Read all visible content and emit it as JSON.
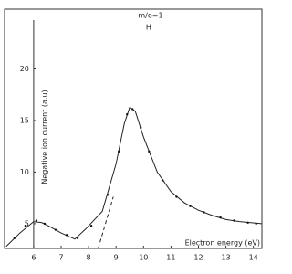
{
  "chart_data": {
    "type": "line",
    "y_label": "Negative ion current (a.u)",
    "x_label": "Electron energy (eV)",
    "annotations": [
      "m/e=1",
      "H⁻"
    ],
    "x": [
      5.0,
      5.5,
      6.0,
      6.3,
      6.6,
      7.0,
      7.5,
      7.9,
      8.5,
      9.0,
      9.3,
      9.5,
      9.7,
      10.0,
      10.5,
      11.0,
      11.5,
      12.0,
      12.5,
      13.0,
      13.5,
      14.3
    ],
    "series": [
      {
        "color": "#222",
        "values": [
          2.8,
          4.1,
          5.2,
          5.1,
          4.7,
          4.1,
          3.5,
          4.5,
          6.2,
          10.8,
          14.7,
          16.3,
          15.9,
          13.4,
          10.0,
          8.1,
          7.0,
          6.3,
          5.8,
          5.4,
          5.2,
          5.0
        ]
      }
    ],
    "points": {
      "x": [
        5.3,
        5.7,
        6.1,
        6.4,
        6.8,
        7.2,
        7.6,
        8.1,
        8.7,
        9.1,
        9.4,
        9.6,
        9.9,
        10.2,
        10.7,
        11.2,
        11.7,
        12.2,
        12.8,
        13.3,
        13.8,
        14.1
      ],
      "values": [
        3.6,
        4.8,
        5.3,
        5.0,
        4.4,
        3.9,
        3.6,
        4.8,
        7.8,
        12.0,
        15.6,
        16.1,
        14.3,
        12.0,
        9.2,
        7.6,
        6.7,
        6.1,
        5.6,
        5.3,
        5.1,
        5.0
      ]
    },
    "extrapolation": {
      "x": [
        8.35,
        8.9
      ],
      "values": [
        2.6,
        7.6
      ]
    },
    "xlim": [
      4.94,
      14.31
    ],
    "ylim": [
      2.6,
      25.8
    ],
    "xticks": [
      6,
      7,
      8,
      9,
      10,
      11,
      12,
      13,
      14
    ],
    "yticks": [
      5,
      10,
      15,
      20
    ]
  }
}
